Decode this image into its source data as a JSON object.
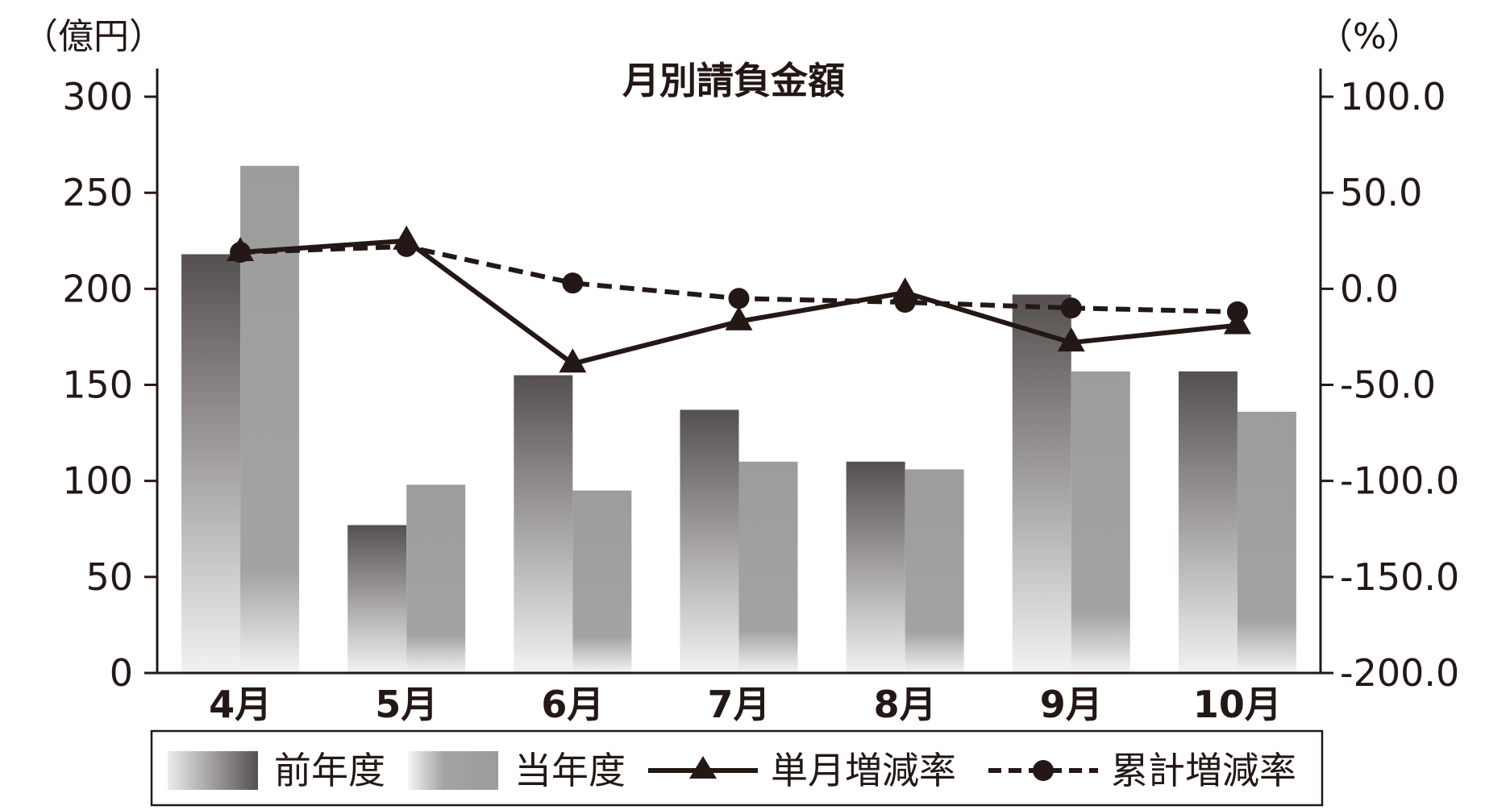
{
  "chart_data": {
    "type": "bar",
    "title": "月別請負金額",
    "left_axis": {
      "unit_label": "（億円）",
      "ylim": [
        0,
        300
      ],
      "ticks": [
        "0",
        "50",
        "100",
        "150",
        "200",
        "250",
        "300"
      ],
      "tick_values": [
        0,
        50,
        100,
        150,
        200,
        250,
        300
      ]
    },
    "right_axis": {
      "unit_label": "（%）",
      "ylim": [
        -200,
        100
      ],
      "ticks": [
        "-200.0",
        "-150.0",
        "-100.0",
        "-50.0",
        "0.0",
        "50.0",
        "100.0"
      ],
      "tick_values": [
        -200,
        -150,
        -100,
        -50,
        0,
        50,
        100
      ]
    },
    "categories": [
      "4月",
      "5月",
      "6月",
      "7月",
      "8月",
      "9月",
      "10月"
    ],
    "series": [
      {
        "name": "前年度",
        "kind": "bar",
        "axis": "left",
        "color": "#55504f",
        "values": [
          218,
          77,
          155,
          137,
          110,
          197,
          157
        ]
      },
      {
        "name": "当年度",
        "kind": "bar",
        "axis": "left",
        "color": "#9d9c9c",
        "values": [
          264,
          98,
          95,
          110,
          106,
          157,
          136
        ]
      },
      {
        "name": "単月増減率",
        "kind": "line",
        "axis": "right",
        "marker": "triangle",
        "style": "solid",
        "color": "#231815",
        "values": [
          19,
          25,
          -39,
          -17,
          -2,
          -28,
          -19
        ]
      },
      {
        "name": "累計増減率",
        "kind": "line",
        "axis": "right",
        "marker": "circle",
        "style": "dashed",
        "color": "#231815",
        "values": [
          19,
          22,
          3,
          -5,
          -7,
          -10,
          -12
        ]
      }
    ],
    "grid": false,
    "legend_position": "bottom"
  }
}
